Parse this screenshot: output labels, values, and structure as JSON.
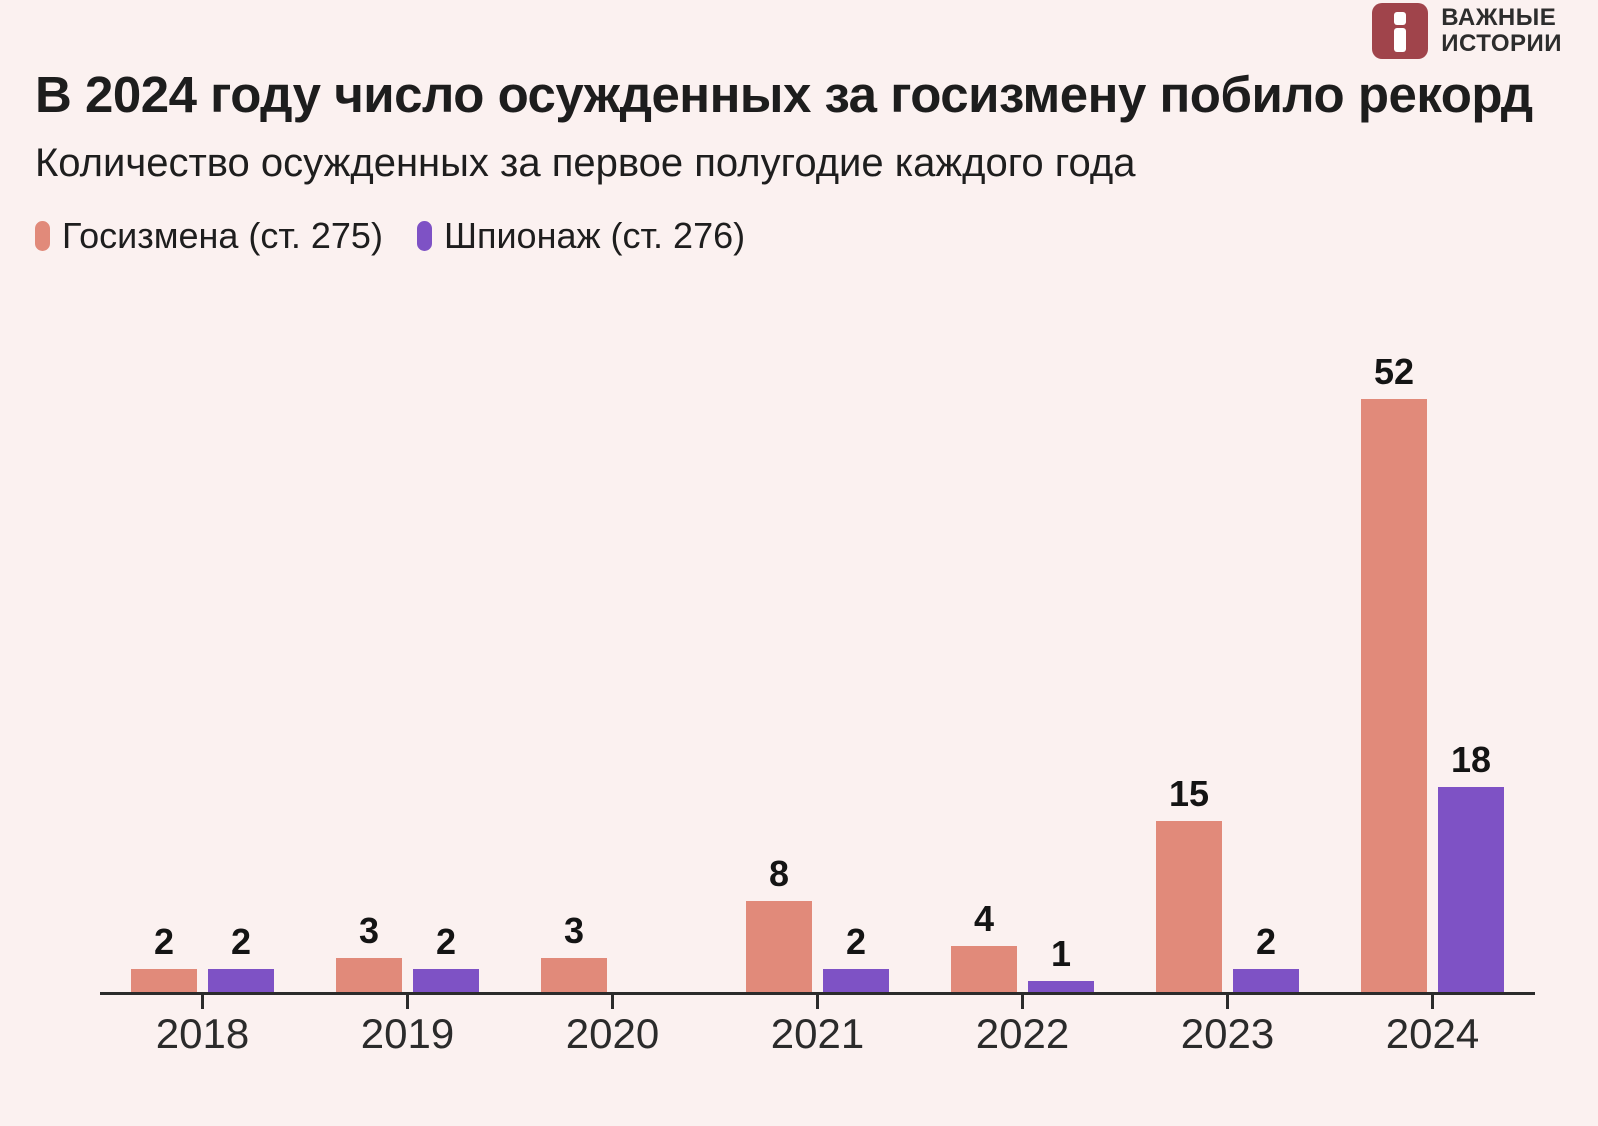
{
  "logo": {
    "icon": "istories-i-icon",
    "line1": "ВАЖНЫЕ",
    "line2": "ИСТОРИИ"
  },
  "colors": {
    "background": "#fbf1f0",
    "treason_bar": "#e18a7a",
    "espionage_bar": "#7e52c5",
    "logo_red": "#a0444b",
    "text": "#1d1d1d",
    "axis": "#2b2b2b"
  },
  "chart_data": {
    "type": "bar",
    "title": "В 2024 году число осужденных за госизмену побило рекорд",
    "subtitle": "Количество осужденных за первое полугодие каждого года",
    "categories": [
      "2018",
      "2019",
      "2020",
      "2021",
      "2022",
      "2023",
      "2024"
    ],
    "series": [
      {
        "name": "Госизмена (ст. 275)",
        "color": "#e18a7a",
        "values": [
          2,
          3,
          3,
          8,
          4,
          15,
          52
        ]
      },
      {
        "name": "Шпионаж (ст. 276)",
        "color": "#7e52c5",
        "values": [
          2,
          2,
          0,
          2,
          1,
          2,
          18
        ]
      }
    ],
    "ylim": [
      0,
      52
    ],
    "grid": false,
    "y_axis_shown": false,
    "value_labels": true,
    "zero_bars_not_drawn": true,
    "legend_position": "top-left"
  }
}
